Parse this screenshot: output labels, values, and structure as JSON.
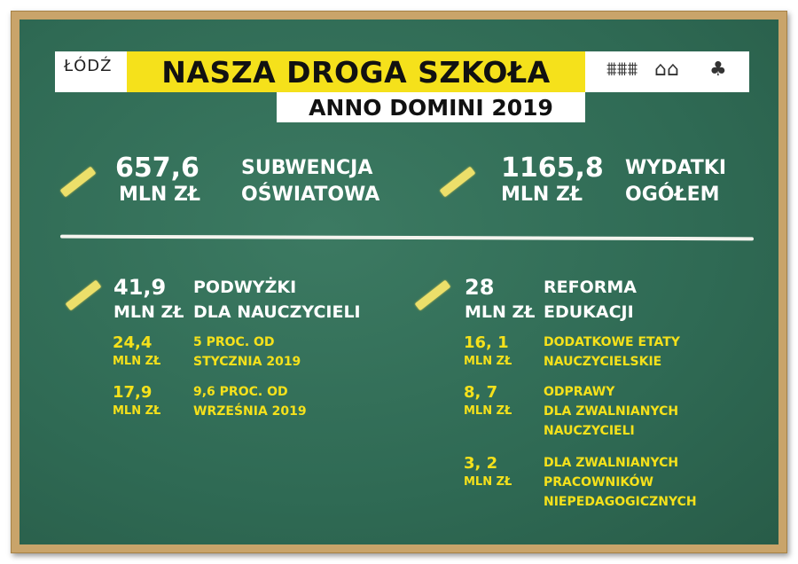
{
  "header": {
    "title": "NASZA DROGA SZKOŁA",
    "subtitle": "ANNO DOMINI 2019",
    "logo": "ŁÓDŹ",
    "icons": [
      "bridge-icon",
      "gate-icon",
      "park-bench-tree-icon"
    ]
  },
  "top": [
    {
      "value": "657,6",
      "unit": "MLN ZŁ",
      "label1": "SUBWENCJA",
      "label2": "OŚWIATOWA"
    },
    {
      "value": "1165,8",
      "unit": "MLN ZŁ",
      "label1": "WYDATKI",
      "label2": "OGÓŁEM"
    }
  ],
  "left": {
    "value": "41,9",
    "unit": "MLN ZŁ",
    "label1": "PODWYŻKI",
    "label2": "DLA NAUCZYCIELI",
    "items": [
      {
        "value": "24,4",
        "unit": "MLN ZŁ",
        "lines": [
          "5 PROC. OD",
          "STYCZNIA 2019"
        ]
      },
      {
        "value": "17,9",
        "unit": "MLN ZŁ",
        "lines": [
          "9,6 PROC. OD",
          "WRZEŚNIA 2019"
        ]
      }
    ]
  },
  "right": {
    "value": "28",
    "unit": "MLN ZŁ",
    "label1": "REFORMA",
    "label2": "EDUKACJI",
    "items": [
      {
        "value": "16, 1",
        "unit": "MLN ZŁ",
        "lines": [
          "DODATKOWE ETATY",
          "NAUCZYCIELSKIE"
        ]
      },
      {
        "value": "8, 7",
        "unit": "MLN ZŁ",
        "lines": [
          "ODPRAWY",
          "DLA ZWALNIANYCH",
          "NAUCZYCIELI"
        ]
      },
      {
        "value": "3, 2",
        "unit": "MLN ZŁ",
        "lines": [
          "DLA ZWALNIANYCH",
          "PRACOWNIKÓW",
          "NIEPEDAGOGICZNYCH"
        ]
      }
    ]
  },
  "colors": {
    "board": "#2f6a54",
    "accent": "#f5e11b",
    "frame": "#c9a46a"
  }
}
